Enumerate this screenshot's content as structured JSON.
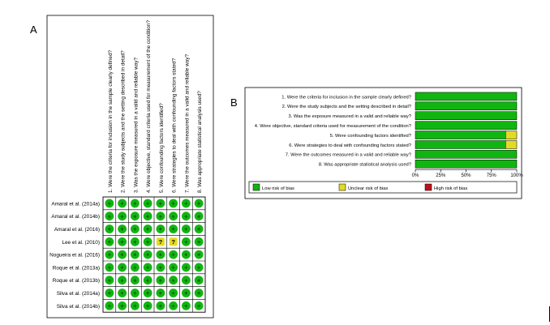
{
  "figure": {
    "panel_a_letter": "A",
    "panel_b_letter": "B"
  },
  "chart_data": [
    {
      "type": "table",
      "panel": "A",
      "questions": [
        "1. Were the criteria for inclusion in the sample clearly defined?",
        "2. Were the study subjects and the setting described in detail?",
        "3. Was the exposure measured in a valid and reliable way?",
        "4. Were objective, standard criteria used for measurement of the condition?",
        "5. Were confounding factors identified?",
        "6. Were strategies to deal with confounding factors stated?",
        "7. Were the outcomes measured in a valid and reliable way?",
        "8. Was appropriate statistical analysis used?"
      ],
      "studies": [
        "Amaral et al. (2014a)",
        "Amaral et al. (2014b)",
        "Amaral et al. (2016)",
        "Lee et al. (2010)",
        "Nogueira et al. (2016)",
        "Roque et al. (2013a)",
        "Roque et al. (2013b)",
        "Silva et al. (2014a)",
        "Silva et al. (2014b)"
      ],
      "judgements": [
        [
          "low",
          "low",
          "low",
          "low",
          "low",
          "low",
          "low",
          "low"
        ],
        [
          "low",
          "low",
          "low",
          "low",
          "low",
          "low",
          "low",
          "low"
        ],
        [
          "low",
          "low",
          "low",
          "low",
          "low",
          "low",
          "low",
          "low"
        ],
        [
          "low",
          "low",
          "low",
          "low",
          "unclear",
          "unclear",
          "low",
          "low"
        ],
        [
          "low",
          "low",
          "low",
          "low",
          "low",
          "low",
          "low",
          "low"
        ],
        [
          "low",
          "low",
          "low",
          "low",
          "low",
          "low",
          "low",
          "low"
        ],
        [
          "low",
          "low",
          "low",
          "low",
          "low",
          "low",
          "low",
          "low"
        ],
        [
          "low",
          "low",
          "low",
          "low",
          "low",
          "low",
          "low",
          "low"
        ],
        [
          "low",
          "low",
          "low",
          "low",
          "low",
          "low",
          "low",
          "low"
        ]
      ],
      "symbols": {
        "low": "+",
        "unclear": "?",
        "high": "-"
      }
    },
    {
      "type": "bar",
      "panel": "B",
      "orientation": "horizontal-stacked",
      "categories": [
        "1. Were the criteria for inclusion in the sample clearly defined?",
        "2. Were the study subjects and the setting described in detail?",
        "3. Was the exposure measured in a valid and reliable way?",
        "4. Were objective, standard criteria used for measurement of the condition?",
        "5. Were confounding factors identified?",
        "6. Were strategies to deal with confounding factors stated?",
        "7. Were the outcomes measured in a valid and reliable way?",
        "8. Was appropriate statistical analysis used?"
      ],
      "series": [
        {
          "name": "Low risk of bias",
          "color": "#11b511",
          "values": [
            100,
            100,
            100,
            100,
            89,
            89,
            100,
            100
          ]
        },
        {
          "name": "Unclear risk of bias",
          "color": "#e0dc22",
          "values": [
            0,
            0,
            0,
            0,
            11,
            11,
            0,
            0
          ]
        },
        {
          "name": "High risk of bias",
          "color": "#c0111a",
          "values": [
            0,
            0,
            0,
            0,
            0,
            0,
            0,
            0
          ]
        }
      ],
      "xticks": [
        "0%",
        "25%",
        "50%",
        "75%",
        "100%"
      ],
      "xlim": [
        0,
        100
      ],
      "legend_position": "bottom"
    }
  ],
  "colors": {
    "low": "#11b511",
    "unclear": "#e0dc22",
    "high": "#c0111a"
  }
}
